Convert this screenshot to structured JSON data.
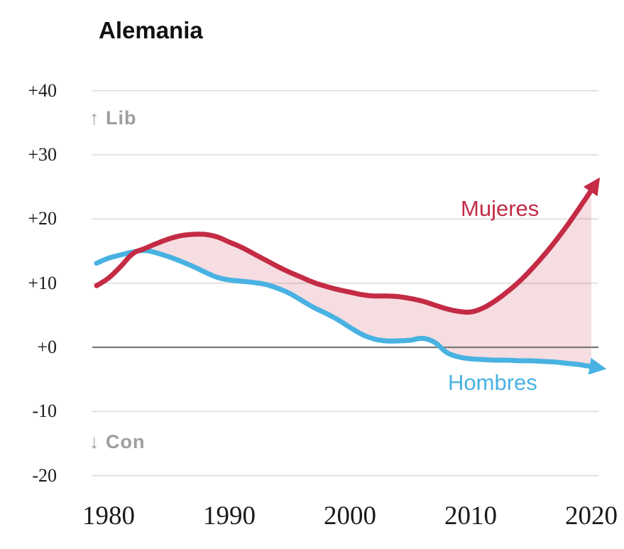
{
  "chart_data": {
    "type": "line",
    "title": "Alemania",
    "x": [
      1979,
      1980,
      1981,
      1982,
      1983,
      1984,
      1985,
      1986,
      1987,
      1988,
      1989,
      1990,
      1991,
      1992,
      1993,
      1994,
      1995,
      1996,
      1997,
      1998,
      1999,
      2000,
      2001,
      2002,
      2003,
      2004,
      2005,
      2006,
      2007,
      2008,
      2009,
      2010,
      2011,
      2012,
      2013,
      2014,
      2015,
      2016,
      2017,
      2018,
      2019,
      2020
    ],
    "series": [
      {
        "name": "Mujeres",
        "color": "#c42b44",
        "values": [
          9.6,
          10.8,
          12.6,
          14.6,
          15.4,
          16.2,
          16.9,
          17.4,
          17.6,
          17.6,
          17.2,
          16.4,
          15.6,
          14.6,
          13.6,
          12.6,
          11.7,
          10.9,
          10.1,
          9.5,
          9.0,
          8.6,
          8.2,
          8.0,
          8.0,
          7.9,
          7.6,
          7.2,
          6.6,
          6.0,
          5.6,
          5.5,
          6.1,
          7.2,
          8.6,
          10.2,
          12.1,
          14.2,
          16.5,
          19.0,
          21.7,
          24.5
        ]
      },
      {
        "name": "Hombres",
        "color": "#48b2e2",
        "values": [
          13.1,
          13.9,
          14.4,
          14.85,
          15.1,
          14.7,
          14.1,
          13.4,
          12.6,
          11.7,
          10.9,
          10.5,
          10.3,
          10.1,
          9.8,
          9.2,
          8.4,
          7.3,
          6.2,
          5.3,
          4.3,
          3.1,
          2.0,
          1.3,
          1.0,
          1.0,
          1.1,
          1.4,
          0.8,
          -0.8,
          -1.5,
          -1.8,
          -1.9,
          -2.0,
          -2.0,
          -2.1,
          -2.1,
          -2.2,
          -2.3,
          -2.5,
          -2.7,
          -3.0
        ]
      }
    ],
    "fill_between": {
      "upper": "Mujeres",
      "lower": "Hombres",
      "color": "rgba(196,43,68,0.16)",
      "where": "upper>=lower"
    },
    "ylim": [
      -20,
      40
    ],
    "yticks": {
      "values": [
        40,
        30,
        20,
        10,
        0,
        -10,
        -20
      ],
      "labels": [
        "+40",
        "+30",
        "+20",
        "+10",
        "+0",
        "-10",
        "-20"
      ]
    },
    "xticks": {
      "values": [
        1980,
        1990,
        2000,
        2010,
        2020
      ],
      "labels": [
        "1980",
        "1990",
        "2000",
        "2010",
        "2020"
      ]
    },
    "zero_line": true,
    "grid": "horizontal",
    "legend": "inline-labels",
    "annotations": {
      "lib": "↑ Lib",
      "con": "↓ Con"
    },
    "colors": {
      "grid": "#dcdcdc",
      "zero_line": "#7a7a7a",
      "axis_text": "#1a1a1a",
      "annotation_text": "#9e9e9e",
      "background": "#ffffff"
    }
  }
}
